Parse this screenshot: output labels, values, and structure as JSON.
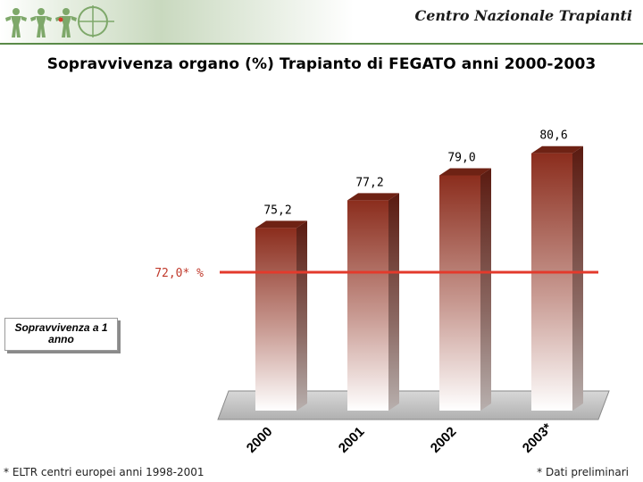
{
  "header": {
    "org_name": "Centro Nazionale Trapianti"
  },
  "page": {
    "title": "Sopravvivenza organo (%) Trapianto di FEGATO anni 2000-2003"
  },
  "legend": {
    "label": "Sopravvivenza a 1 anno"
  },
  "footnotes": {
    "left": "* ELTR centri europei anni 1998-2001",
    "right": "* Dati preliminari"
  },
  "colors": {
    "bar_dark": "#8b2d1d",
    "bar_light": "#ffffff",
    "reference_line": "#e33a2c",
    "reference_label": "#c0392b",
    "header_green": "#5a8a48"
  },
  "chart_data": {
    "type": "bar",
    "categories": [
      "2000",
      "2001",
      "2002",
      "2003*"
    ],
    "values": [
      75.2,
      77.2,
      79.0,
      80.6
    ],
    "data_labels": [
      "75,2",
      "77,2",
      "79,0",
      "80,6"
    ],
    "reference_line": {
      "value": 72.0,
      "label": "72,0* %"
    },
    "ylim": [
      62,
      82
    ],
    "grid": false,
    "three_d": true
  }
}
